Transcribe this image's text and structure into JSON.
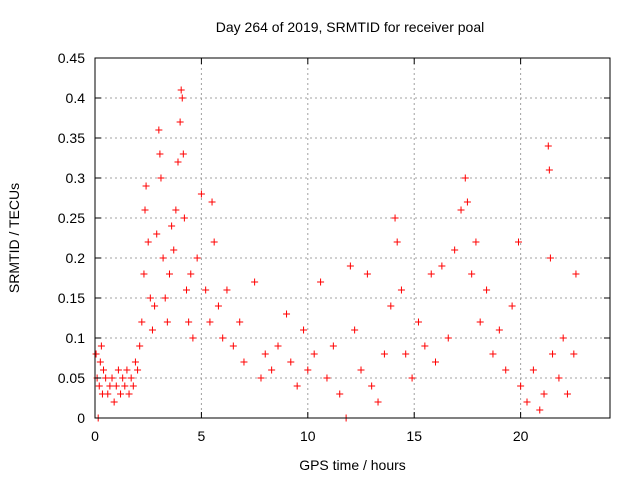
{
  "chart_data": {
    "type": "scatter",
    "title": "Day 264 of 2019, SRMTID for receiver poal",
    "xlabel": "GPS time / hours",
    "ylabel": "SRMTID / TECUs",
    "xlim": [
      0,
      24.2
    ],
    "ylim": [
      0,
      0.45
    ],
    "grid": true,
    "marker": "plus",
    "color": "#ff0000",
    "x_ticks": [
      0,
      5,
      10,
      15,
      20
    ],
    "x_tick_labels": [
      "0",
      "5",
      "10",
      "15",
      "20"
    ],
    "y_ticks": [
      0,
      0.05,
      0.1,
      0.15,
      0.2,
      0.25,
      0.3,
      0.35,
      0.4,
      0.45
    ],
    "y_tick_labels": [
      "0",
      "0.05",
      "0.1",
      "0.15",
      "0.2",
      "0.25",
      "0.3",
      "0.35",
      "0.4",
      "0.45"
    ],
    "series": [
      {
        "name": "SRMTID",
        "points": [
          [
            0.05,
            0.08
          ],
          [
            0.1,
            0.05
          ],
          [
            0.15,
            0.0
          ],
          [
            0.2,
            0.04
          ],
          [
            0.25,
            0.07
          ],
          [
            0.3,
            0.09
          ],
          [
            0.35,
            0.03
          ],
          [
            0.4,
            0.06
          ],
          [
            0.5,
            0.05
          ],
          [
            0.6,
            0.03
          ],
          [
            0.7,
            0.04
          ],
          [
            0.8,
            0.05
          ],
          [
            0.9,
            0.02
          ],
          [
            1.0,
            0.04
          ],
          [
            1.1,
            0.06
          ],
          [
            1.2,
            0.03
          ],
          [
            1.3,
            0.05
          ],
          [
            1.4,
            0.04
          ],
          [
            1.5,
            0.06
          ],
          [
            1.6,
            0.03
          ],
          [
            1.7,
            0.05
          ],
          [
            1.8,
            0.04
          ],
          [
            1.9,
            0.07
          ],
          [
            2.0,
            0.06
          ],
          [
            2.1,
            0.09
          ],
          [
            2.2,
            0.12
          ],
          [
            2.3,
            0.18
          ],
          [
            2.35,
            0.26
          ],
          [
            2.4,
            0.29
          ],
          [
            2.5,
            0.22
          ],
          [
            2.6,
            0.15
          ],
          [
            2.7,
            0.11
          ],
          [
            2.8,
            0.14
          ],
          [
            2.9,
            0.23
          ],
          [
            3.0,
            0.36
          ],
          [
            3.05,
            0.33
          ],
          [
            3.1,
            0.3
          ],
          [
            3.2,
            0.2
          ],
          [
            3.3,
            0.15
          ],
          [
            3.4,
            0.12
          ],
          [
            3.5,
            0.18
          ],
          [
            3.6,
            0.24
          ],
          [
            3.7,
            0.21
          ],
          [
            3.8,
            0.26
          ],
          [
            3.9,
            0.32
          ],
          [
            4.0,
            0.37
          ],
          [
            4.05,
            0.41
          ],
          [
            4.1,
            0.4
          ],
          [
            4.15,
            0.33
          ],
          [
            4.2,
            0.25
          ],
          [
            4.3,
            0.16
          ],
          [
            4.4,
            0.12
          ],
          [
            4.5,
            0.18
          ],
          [
            4.6,
            0.1
          ],
          [
            4.8,
            0.2
          ],
          [
            5.0,
            0.28
          ],
          [
            5.2,
            0.16
          ],
          [
            5.4,
            0.12
          ],
          [
            5.5,
            0.27
          ],
          [
            5.6,
            0.22
          ],
          [
            5.8,
            0.14
          ],
          [
            6.0,
            0.1
          ],
          [
            6.2,
            0.16
          ],
          [
            6.5,
            0.09
          ],
          [
            6.8,
            0.12
          ],
          [
            7.0,
            0.07
          ],
          [
            7.5,
            0.17
          ],
          [
            7.8,
            0.05
          ],
          [
            8.0,
            0.08
          ],
          [
            8.3,
            0.06
          ],
          [
            8.6,
            0.09
          ],
          [
            9.0,
            0.13
          ],
          [
            9.2,
            0.07
          ],
          [
            9.5,
            0.04
          ],
          [
            9.8,
            0.11
          ],
          [
            10.0,
            0.06
          ],
          [
            10.3,
            0.08
          ],
          [
            10.6,
            0.17
          ],
          [
            10.9,
            0.05
          ],
          [
            11.2,
            0.09
          ],
          [
            11.5,
            0.03
          ],
          [
            11.8,
            0.0
          ],
          [
            12.0,
            0.19
          ],
          [
            12.2,
            0.11
          ],
          [
            12.5,
            0.06
          ],
          [
            12.8,
            0.18
          ],
          [
            13.0,
            0.04
          ],
          [
            13.3,
            0.02
          ],
          [
            13.6,
            0.08
          ],
          [
            13.9,
            0.14
          ],
          [
            14.1,
            0.25
          ],
          [
            14.2,
            0.22
          ],
          [
            14.4,
            0.16
          ],
          [
            14.6,
            0.08
          ],
          [
            14.9,
            0.05
          ],
          [
            15.2,
            0.12
          ],
          [
            15.5,
            0.09
          ],
          [
            15.8,
            0.18
          ],
          [
            16.0,
            0.07
          ],
          [
            16.3,
            0.19
          ],
          [
            16.6,
            0.1
          ],
          [
            16.9,
            0.21
          ],
          [
            17.2,
            0.26
          ],
          [
            17.4,
            0.3
          ],
          [
            17.5,
            0.27
          ],
          [
            17.7,
            0.18
          ],
          [
            17.9,
            0.22
          ],
          [
            18.1,
            0.12
          ],
          [
            18.4,
            0.16
          ],
          [
            18.7,
            0.08
          ],
          [
            19.0,
            0.11
          ],
          [
            19.3,
            0.06
          ],
          [
            19.6,
            0.14
          ],
          [
            19.9,
            0.22
          ],
          [
            20.0,
            0.04
          ],
          [
            20.3,
            0.02
          ],
          [
            20.6,
            0.06
          ],
          [
            20.9,
            0.01
          ],
          [
            21.1,
            0.03
          ],
          [
            21.3,
            0.34
          ],
          [
            21.35,
            0.31
          ],
          [
            21.4,
            0.2
          ],
          [
            21.5,
            0.08
          ],
          [
            21.8,
            0.05
          ],
          [
            22.0,
            0.1
          ],
          [
            22.2,
            0.03
          ],
          [
            22.5,
            0.08
          ],
          [
            22.6,
            0.18
          ]
        ]
      }
    ]
  }
}
